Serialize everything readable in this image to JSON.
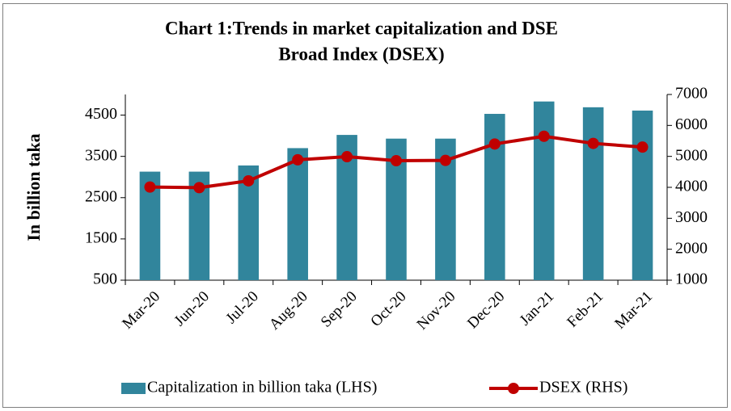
{
  "chart_data": {
    "type": "bar_line",
    "title_lines": [
      "Chart 1:Trends in market capitalization and DSE",
      "Broad Index (DSEX)"
    ],
    "y_label": "In billion taka",
    "categories": [
      "Mar-20",
      "Jun-20",
      "Jul-20",
      "Aug-20",
      "Sep-20",
      "Oct-20",
      "Nov-20",
      "Dec-20",
      "Jan-21",
      "Feb-21",
      "Mar-21"
    ],
    "series": [
      {
        "name": "Capitalization in billion taka (LHS)",
        "type": "bar",
        "color": "#31859c",
        "axis": "y",
        "values": [
          3130,
          3130,
          3280,
          3700,
          4020,
          3930,
          3930,
          4530,
          4830,
          4690,
          4610
        ]
      },
      {
        "name": "DSEX (RHS)",
        "type": "line",
        "color": "#c00000",
        "axis": "y2",
        "values": [
          4010,
          3990,
          4210,
          4890,
          4990,
          4860,
          4870,
          5400,
          5650,
          5420,
          5300
        ]
      }
    ],
    "ylim": [
      500,
      5000
    ],
    "yticks": [
      500,
      1500,
      2500,
      3500,
      4500
    ],
    "y2lim": [
      1000,
      7000
    ],
    "y2ticks": [
      1000,
      2000,
      3000,
      4000,
      5000,
      6000,
      7000
    ],
    "legend": "bottom"
  }
}
